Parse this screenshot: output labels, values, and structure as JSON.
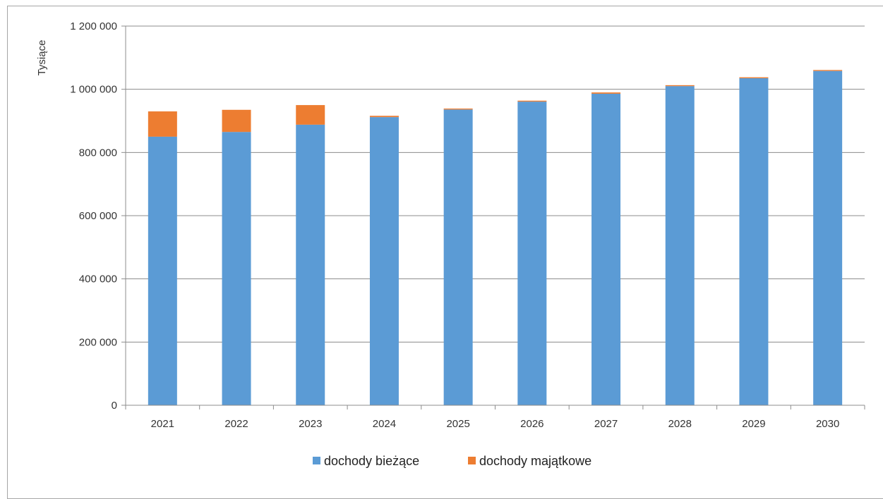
{
  "chart_data": {
    "type": "bar",
    "stacked": true,
    "title": "",
    "xlabel": "",
    "ylabel": "Tysiące",
    "ylim": [
      0,
      1200000
    ],
    "yticks": [
      0,
      200000,
      400000,
      600000,
      800000,
      1000000,
      1200000
    ],
    "ytick_labels": [
      "0",
      "200 000",
      "400 000",
      "600 000",
      "800 000",
      "1 000 000",
      "1 200 000"
    ],
    "grid": true,
    "legend_position": "bottom",
    "categories": [
      "2021",
      "2022",
      "2023",
      "2024",
      "2025",
      "2026",
      "2027",
      "2028",
      "2029",
      "2030"
    ],
    "series": [
      {
        "name": "dochody bieżące",
        "color": "#5b9bd5",
        "values": [
          850000,
          865000,
          888000,
          912000,
          936000,
          961000,
          986000,
          1010000,
          1035000,
          1058000
        ]
      },
      {
        "name": "dochody majątkowe",
        "color": "#ed7d31",
        "values": [
          80000,
          70000,
          62000,
          4000,
          3000,
          3000,
          4000,
          3000,
          3000,
          3000
        ]
      }
    ]
  }
}
